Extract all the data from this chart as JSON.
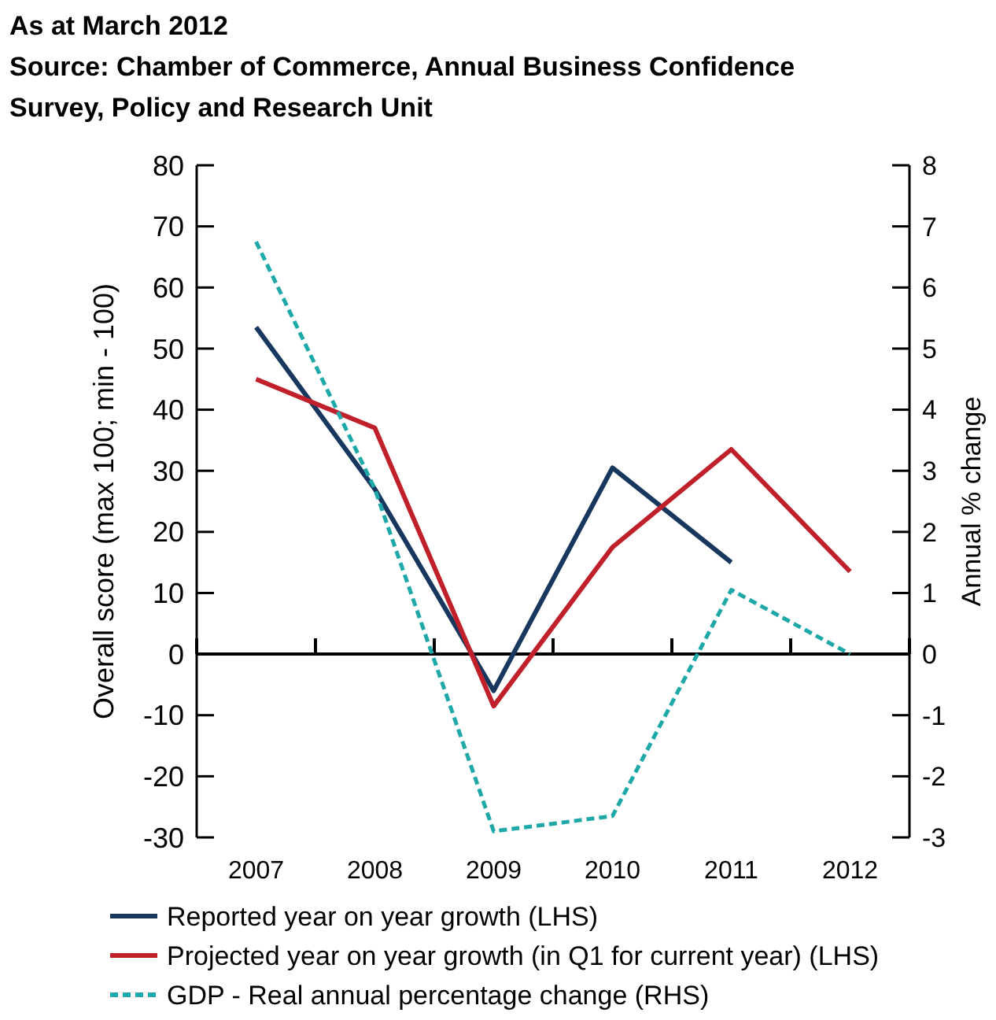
{
  "chart_data": {
    "type": "line",
    "title": "As at March 2012",
    "subtitle": "Source: Chamber of Commerce, Annual Business Confidence Survey, Policy and Research Unit",
    "ylabel": "Overall score (max 100; min - 100)",
    "y2label": "Annual % change",
    "categories": [
      "2007",
      "2008",
      "2009",
      "2010",
      "2011",
      "2012"
    ],
    "series": [
      {
        "name": "Reported year on year growth (LHS)",
        "color": "#17375e",
        "values": [
          53.5,
          27,
          -6,
          30.5,
          15,
          null
        ],
        "line_style": "solid"
      },
      {
        "name": "Projected year on year growth (in Q1 for current year) (LHS)",
        "color": "#c0202a",
        "values": [
          45,
          37,
          -8.5,
          17.5,
          33.5,
          13.5
        ],
        "line_style": "solid"
      },
      {
        "name": "GDP - Real annual percentage change (RHS)",
        "color": "#1fa8a8",
        "values": [
          6.75,
          2.7,
          -2.9,
          -2.65,
          1.05,
          0
        ],
        "axis": "y2",
        "line_style": "dashed"
      }
    ],
    "ylim": [
      -30,
      80
    ],
    "yticks": [
      -30,
      -20,
      -10,
      0,
      10,
      20,
      30,
      40,
      50,
      60,
      70,
      80
    ],
    "y2lim": [
      -3,
      8
    ],
    "y2ticks": [
      -3,
      -2,
      -1,
      0,
      1,
      2,
      3,
      4,
      5,
      6,
      7,
      8
    ],
    "legend": "bottom"
  }
}
